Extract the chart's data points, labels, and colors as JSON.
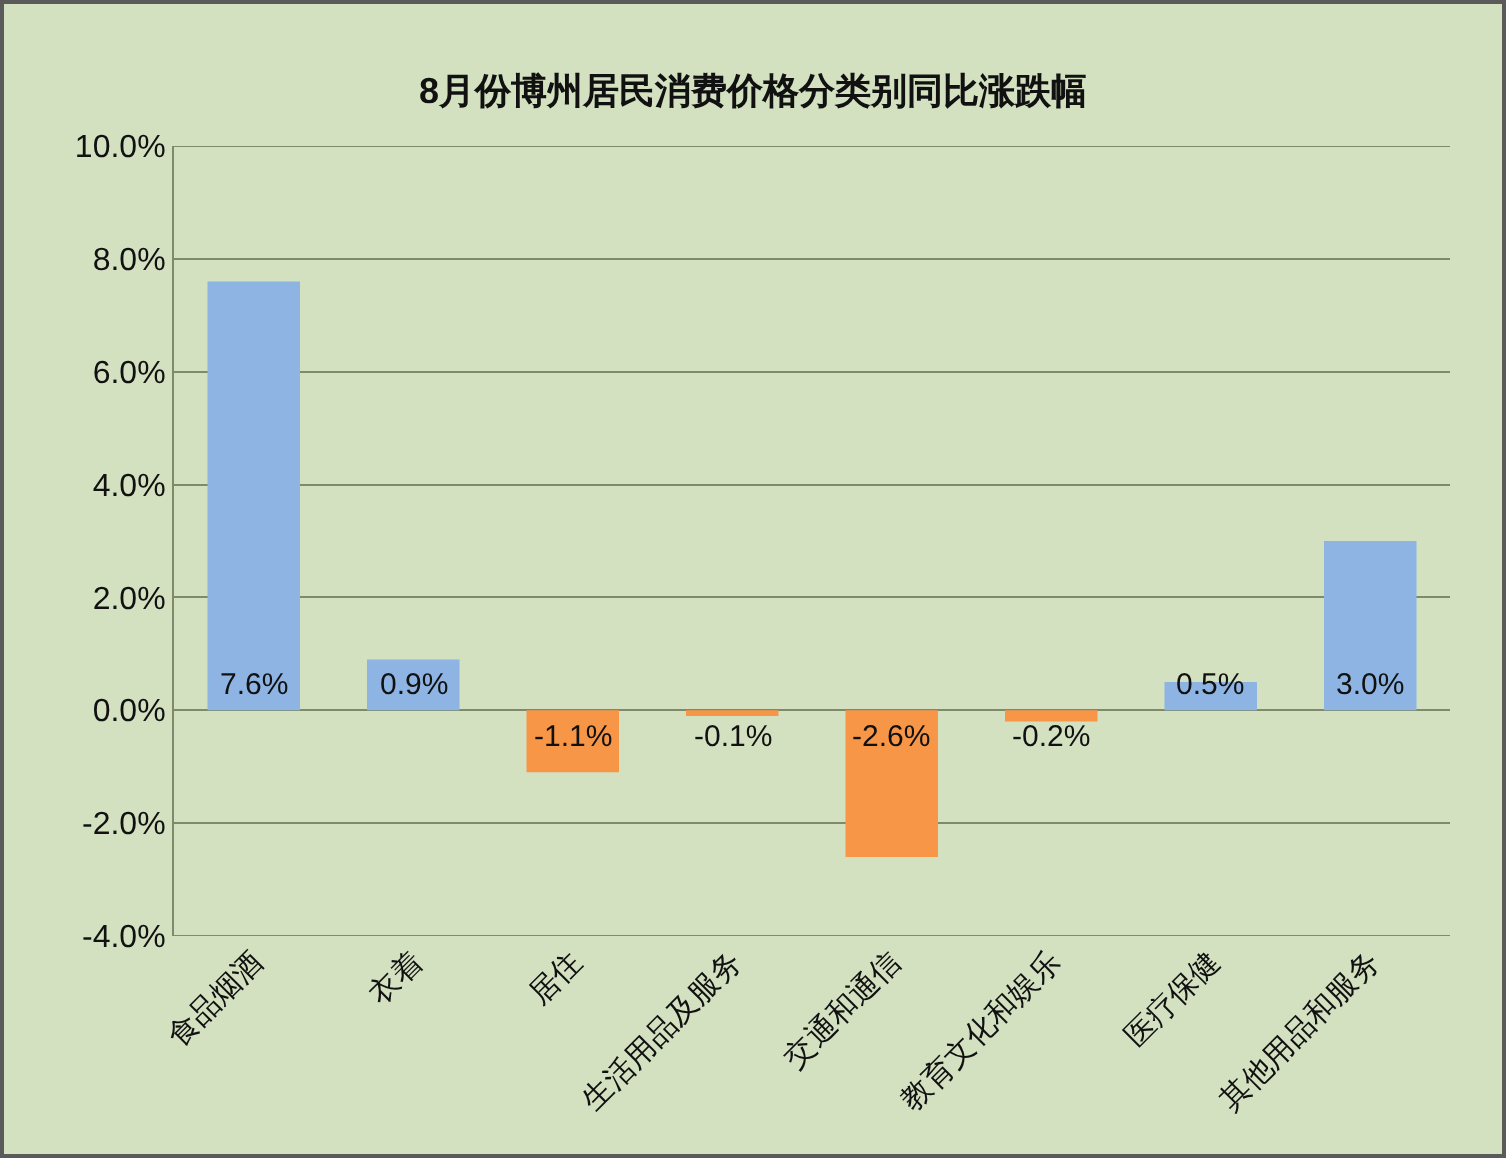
{
  "chart_data": {
    "type": "bar",
    "title": "8月份博州居民消费价格分类别同比涨跌幅",
    "categories": [
      "食品烟酒",
      "衣着",
      "居住",
      "生活用品及服务",
      "交通和通信",
      "教育文化和娱乐",
      "医疗保健",
      "其他用品和服务"
    ],
    "values": [
      7.6,
      0.9,
      -1.1,
      -0.1,
      -2.6,
      -0.2,
      0.5,
      3.0
    ],
    "colors": [
      "#8db4e2",
      "#8db4e2",
      "#f79646",
      "#f79646",
      "#f79646",
      "#f79646",
      "#8db4e2",
      "#8db4e2"
    ],
    "value_labels": [
      "7.6%",
      "0.9%",
      "-1.1%",
      "-0.1%",
      "-2.6%",
      "-0.2%",
      "0.5%",
      "3.0%"
    ],
    "ylim": [
      -4,
      10
    ],
    "yticks": [
      {
        "value": -4,
        "label": "-4.0%"
      },
      {
        "value": -2,
        "label": "-2.0%"
      },
      {
        "value": 0,
        "label": "0.0%"
      },
      {
        "value": 2,
        "label": "2.0%"
      },
      {
        "value": 4,
        "label": "4.0%"
      },
      {
        "value": 6,
        "label": "6.0%"
      },
      {
        "value": 8,
        "label": "8.0%"
      },
      {
        "value": 10,
        "label": "10.0%"
      }
    ],
    "grid": "y"
  }
}
